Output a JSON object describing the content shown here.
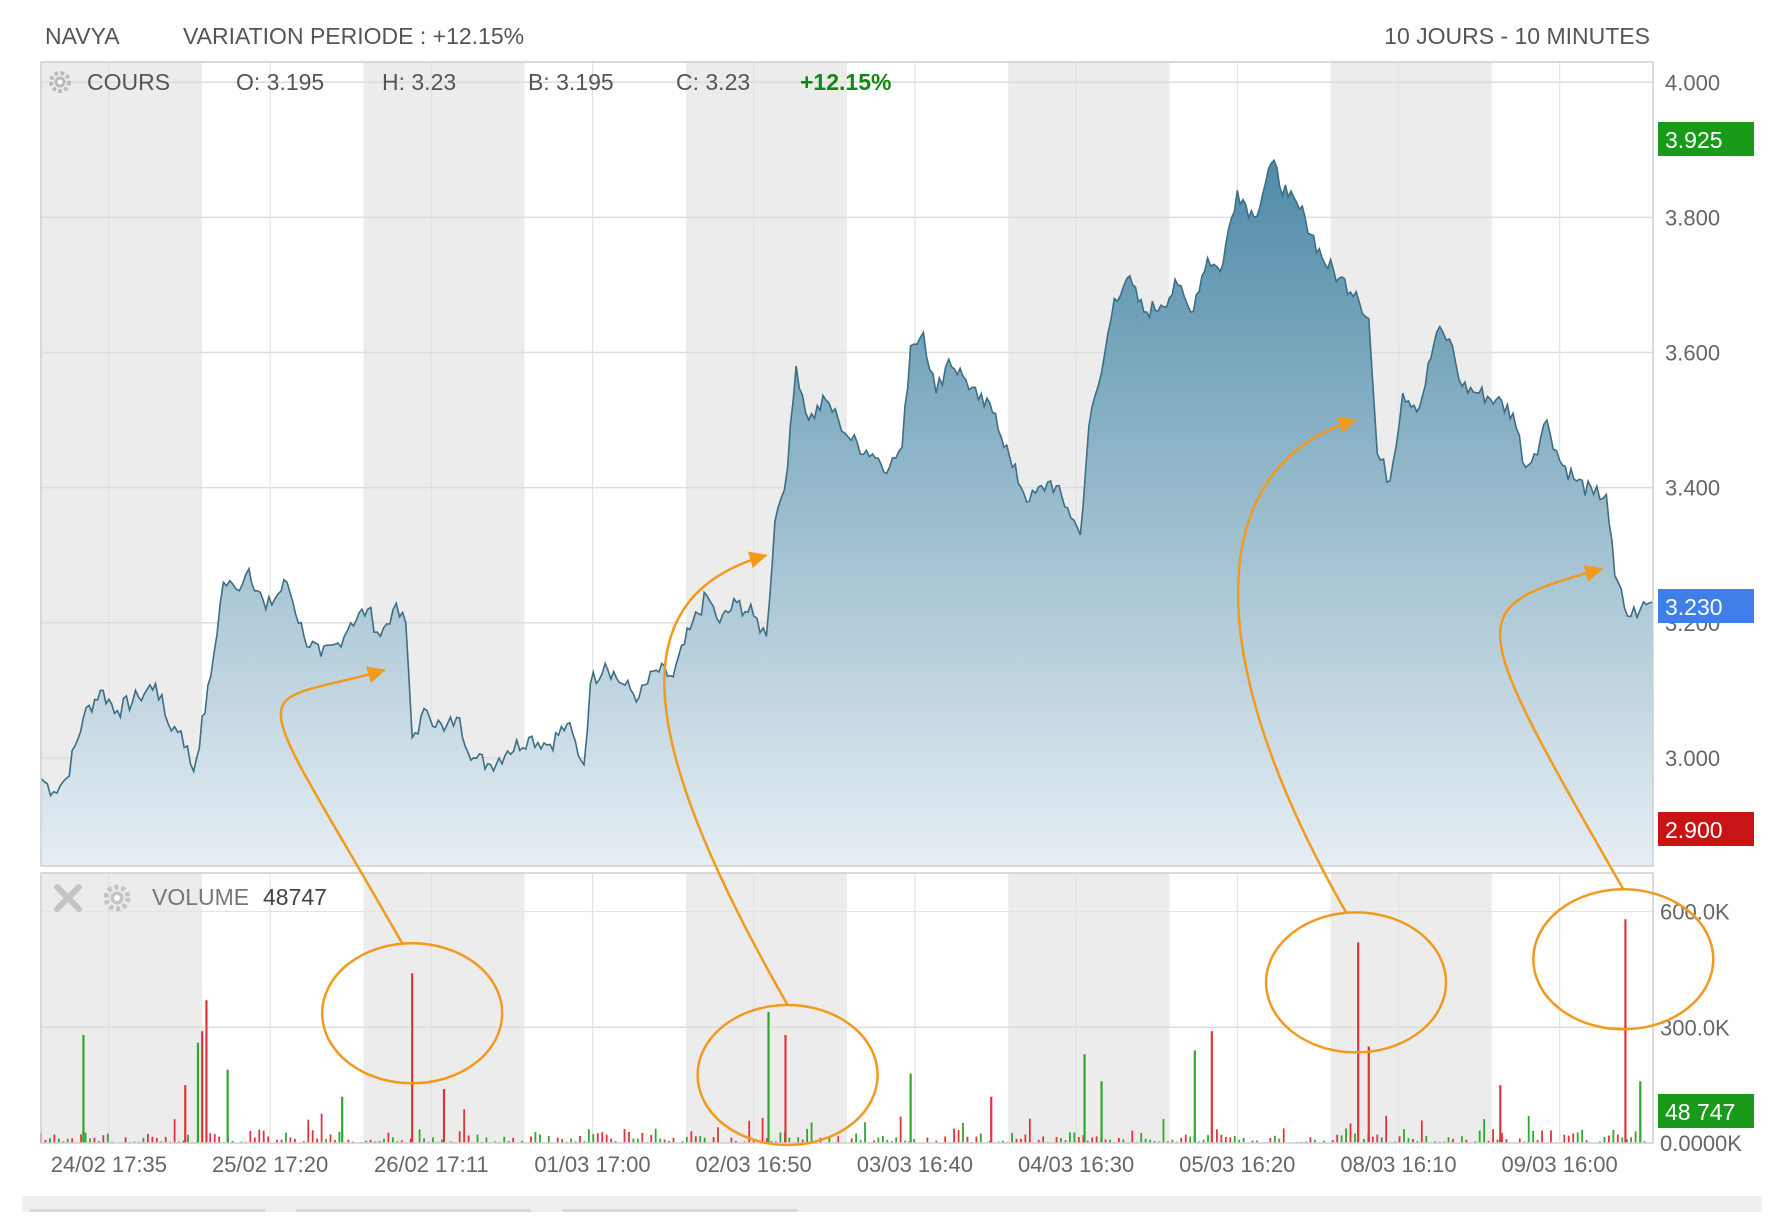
{
  "header": {
    "symbol": "NAVYA",
    "variation": "VARIATION PERIODE : +12.15%",
    "period": "10 JOURS - 10 MINUTES"
  },
  "price_panel": {
    "label": "COURS",
    "open": "O: 3.195",
    "high": "H: 3.23",
    "low": "B: 3.195",
    "close": "C: 3.23",
    "change": "+12.15%",
    "high_flag": "3.925",
    "last_flag": "3.230",
    "low_flag": "2.900"
  },
  "volume_panel": {
    "label": "VOLUME",
    "value": "48747",
    "last_flag": "48 747"
  },
  "colors": {
    "line": "#3d6e85",
    "area_top": "#4f8ba8",
    "area_bottom": "#e6eef3",
    "up_bar": "#2ea82e",
    "down_bar": "#e0343c",
    "high_flag": "#1a9a1a",
    "last_flag": "#3e7fe8",
    "low_flag": "#c81414",
    "volume_flag": "#1a9a1a",
    "annotation": "#f29a1e",
    "change_text": "#118a11"
  },
  "icons": [
    "gear-icon",
    "close-icon"
  ],
  "chart_data": [
    {
      "type": "area",
      "series": "price",
      "ylim": [
        2.84,
        4.03
      ],
      "yticks": [
        "4.000",
        "3.800",
        "3.600",
        "3.400",
        "3.200",
        "3.000"
      ],
      "xticks": [
        "24/02 17:35",
        "25/02 17:20",
        "26/02 17:11",
        "01/03 17:00",
        "02/03 16:50",
        "03/03 16:40",
        "04/03 16:30",
        "05/03 16:20",
        "08/03 16:10",
        "09/03 16:00"
      ],
      "sessions": 10,
      "keypoints": [
        [
          0.0,
          2.97
        ],
        [
          0.3,
          2.95
        ],
        [
          0.6,
          2.97
        ],
        [
          1.0,
          3.06
        ],
        [
          1.4,
          3.1
        ],
        [
          1.8,
          3.07
        ],
        [
          2.3,
          3.09
        ],
        [
          2.7,
          3.11
        ],
        [
          3.0,
          3.05
        ],
        [
          3.3,
          3.04
        ],
        [
          3.6,
          2.98
        ],
        [
          4.0,
          3.12
        ],
        [
          4.3,
          3.26
        ],
        [
          4.6,
          3.25
        ],
        [
          4.9,
          3.28
        ],
        [
          5.3,
          3.22
        ],
        [
          5.8,
          3.26
        ],
        [
          6.2,
          3.18
        ],
        [
          6.6,
          3.15
        ],
        [
          7.0,
          3.17
        ],
        [
          7.3,
          3.2
        ],
        [
          7.7,
          3.22
        ],
        [
          8.0,
          3.18
        ],
        [
          8.3,
          3.22
        ],
        [
          8.6,
          3.2
        ],
        [
          8.75,
          3.03
        ],
        [
          9.1,
          3.07
        ],
        [
          9.5,
          3.04
        ],
        [
          9.8,
          3.06
        ],
        [
          10.2,
          3.0
        ],
        [
          10.6,
          2.99
        ],
        [
          11.0,
          3.01
        ],
        [
          11.5,
          3.03
        ],
        [
          12.0,
          3.02
        ],
        [
          12.4,
          3.05
        ],
        [
          12.8,
          2.99
        ],
        [
          12.95,
          3.11
        ],
        [
          13.3,
          3.14
        ],
        [
          13.7,
          3.11
        ],
        [
          14.1,
          3.09
        ],
        [
          14.5,
          3.13
        ],
        [
          14.9,
          3.12
        ],
        [
          15.3,
          3.19
        ],
        [
          15.7,
          3.24
        ],
        [
          16.0,
          3.2
        ],
        [
          16.4,
          3.23
        ],
        [
          16.8,
          3.21
        ],
        [
          17.1,
          3.18
        ],
        [
          17.3,
          3.35
        ],
        [
          17.6,
          3.43
        ],
        [
          17.8,
          3.58
        ],
        [
          18.1,
          3.5
        ],
        [
          18.5,
          3.53
        ],
        [
          18.8,
          3.5
        ],
        [
          19.1,
          3.47
        ],
        [
          19.6,
          3.45
        ],
        [
          20.0,
          3.43
        ],
        [
          20.3,
          3.46
        ],
        [
          20.5,
          3.61
        ],
        [
          20.8,
          3.63
        ],
        [
          21.1,
          3.54
        ],
        [
          21.4,
          3.59
        ],
        [
          21.8,
          3.56
        ],
        [
          22.1,
          3.53
        ],
        [
          22.5,
          3.51
        ],
        [
          22.9,
          3.43
        ],
        [
          23.3,
          3.38
        ],
        [
          23.8,
          3.41
        ],
        [
          24.2,
          3.37
        ],
        [
          24.5,
          3.33
        ],
        [
          24.7,
          3.49
        ],
        [
          25.0,
          3.57
        ],
        [
          25.3,
          3.68
        ],
        [
          25.6,
          3.71
        ],
        [
          26.0,
          3.66
        ],
        [
          26.4,
          3.67
        ],
        [
          26.8,
          3.7
        ],
        [
          27.1,
          3.66
        ],
        [
          27.5,
          3.74
        ],
        [
          27.8,
          3.72
        ],
        [
          28.2,
          3.84
        ],
        [
          28.6,
          3.8
        ],
        [
          29.0,
          3.88
        ],
        [
          29.4,
          3.83
        ],
        [
          29.8,
          3.8
        ],
        [
          30.2,
          3.74
        ],
        [
          30.6,
          3.71
        ],
        [
          31.0,
          3.69
        ],
        [
          31.3,
          3.65
        ],
        [
          31.5,
          3.45
        ],
        [
          31.8,
          3.41
        ],
        [
          32.1,
          3.54
        ],
        [
          32.5,
          3.52
        ],
        [
          32.9,
          3.63
        ],
        [
          33.2,
          3.62
        ],
        [
          33.5,
          3.55
        ],
        [
          33.9,
          3.54
        ],
        [
          34.3,
          3.53
        ],
        [
          34.7,
          3.51
        ],
        [
          35.0,
          3.43
        ],
        [
          35.2,
          3.45
        ],
        [
          35.5,
          3.5
        ],
        [
          35.8,
          3.44
        ],
        [
          36.2,
          3.41
        ],
        [
          36.6,
          3.39
        ],
        [
          36.9,
          3.39
        ],
        [
          37.1,
          3.27
        ],
        [
          37.4,
          3.21
        ],
        [
          37.7,
          3.22
        ],
        [
          38.0,
          3.23
        ]
      ],
      "annotations": [
        {
          "from_volume_spike": 8.75,
          "to_price": [
            8.1,
            3.13
          ]
        },
        {
          "from_volume_spike": 17.6,
          "to_price": [
            17.1,
            3.3
          ]
        },
        {
          "from_volume_spike": 31.0,
          "to_price": [
            31.0,
            3.5
          ]
        },
        {
          "from_volume_spike": 37.3,
          "to_price": [
            36.8,
            3.28
          ]
        }
      ]
    },
    {
      "type": "bar",
      "series": "volume",
      "ylim": [
        0,
        700000
      ],
      "yticks": [
        "600.0K",
        "300.0K",
        "0.0000K"
      ],
      "spikes": [
        {
          "x": 1.0,
          "value": 280000,
          "dir": "up"
        },
        {
          "x": 3.4,
          "value": 150000,
          "dir": "down"
        },
        {
          "x": 3.7,
          "value": 260000,
          "dir": "up"
        },
        {
          "x": 3.8,
          "value": 290000,
          "dir": "down"
        },
        {
          "x": 3.9,
          "value": 370000,
          "dir": "down"
        },
        {
          "x": 4.4,
          "value": 190000,
          "dir": "up"
        },
        {
          "x": 7.1,
          "value": 120000,
          "dir": "up"
        },
        {
          "x": 8.75,
          "value": 440000,
          "dir": "down"
        },
        {
          "x": 9.5,
          "value": 140000,
          "dir": "down"
        },
        {
          "x": 17.15,
          "value": 340000,
          "dir": "up"
        },
        {
          "x": 17.55,
          "value": 280000,
          "dir": "down"
        },
        {
          "x": 20.5,
          "value": 180000,
          "dir": "up"
        },
        {
          "x": 22.4,
          "value": 120000,
          "dir": "down"
        },
        {
          "x": 24.6,
          "value": 230000,
          "dir": "up"
        },
        {
          "x": 25.0,
          "value": 160000,
          "dir": "up"
        },
        {
          "x": 27.2,
          "value": 240000,
          "dir": "up"
        },
        {
          "x": 27.6,
          "value": 290000,
          "dir": "down"
        },
        {
          "x": 31.05,
          "value": 520000,
          "dir": "down"
        },
        {
          "x": 31.3,
          "value": 250000,
          "dir": "down"
        },
        {
          "x": 34.4,
          "value": 150000,
          "dir": "down"
        },
        {
          "x": 37.35,
          "value": 580000,
          "dir": "down"
        },
        {
          "x": 37.7,
          "value": 160000,
          "dir": "up"
        }
      ]
    }
  ]
}
